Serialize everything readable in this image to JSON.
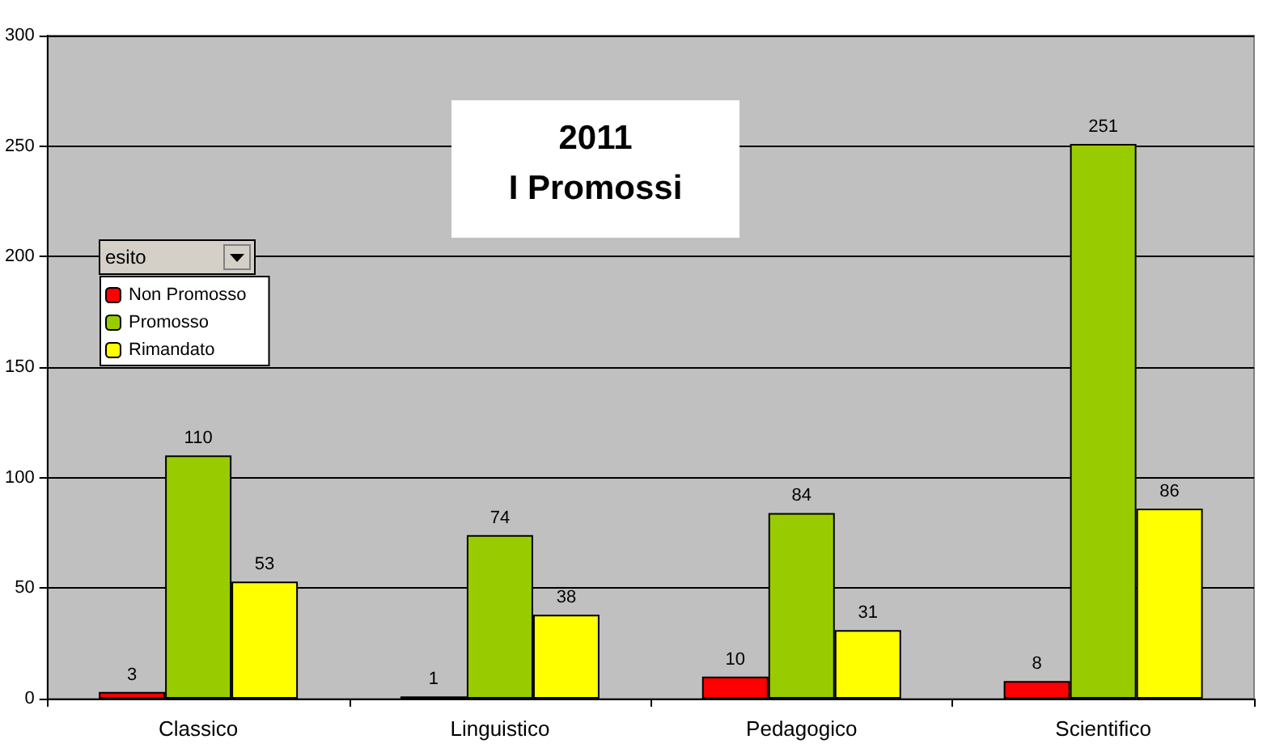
{
  "chart_data": {
    "type": "bar",
    "title": "2011\nI Promossi",
    "legend_title": "esito",
    "categories": [
      "Classico",
      "Linguistico",
      "Pedagogico",
      "Scientifico"
    ],
    "series": [
      {
        "name": "Non Promosso",
        "color": "#ff0000",
        "values": [
          3,
          1,
          10,
          8
        ]
      },
      {
        "name": "Promosso",
        "color": "#99cc00",
        "values": [
          110,
          74,
          84,
          251
        ]
      },
      {
        "name": "Rimandato",
        "color": "#ffff00",
        "values": [
          53,
          38,
          31,
          86
        ]
      }
    ],
    "ylim": [
      0,
      300
    ],
    "yticks": [
      0,
      50,
      100,
      150,
      200,
      250,
      300
    ],
    "grid": "y",
    "legend": "top left",
    "data_labels": true
  }
}
